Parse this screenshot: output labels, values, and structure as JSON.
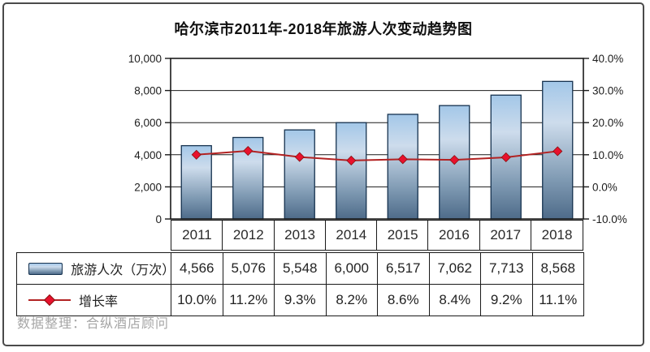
{
  "title": "哈尔滨市2011年-2018年旅游人次变动趋势图",
  "watermark": "数据整理：合纵酒店顾问",
  "chart_data": {
    "type": "combo",
    "categories": [
      "2011",
      "2012",
      "2013",
      "2014",
      "2015",
      "2016",
      "2017",
      "2018"
    ],
    "series": [
      {
        "name": "旅游人次（万次）",
        "type": "bar",
        "axis": "left",
        "values": [
          4566,
          5076,
          5548,
          6000,
          6517,
          7062,
          7713,
          8568
        ]
      },
      {
        "name": "增长率",
        "type": "line",
        "axis": "right",
        "values": [
          10.0,
          11.2,
          9.3,
          8.2,
          8.6,
          8.4,
          9.2,
          11.1
        ]
      }
    ],
    "left_axis": {
      "min": 0,
      "max": 10000,
      "step": 2000,
      "labels": [
        "10,000",
        "8,000",
        "6,000",
        "4,000",
        "2,000",
        "0"
      ]
    },
    "right_axis": {
      "min": -10,
      "max": 40,
      "step": 10,
      "labels": [
        "40.0%",
        "30.0%",
        "20.0%",
        "10.0%",
        "0.0%",
        "-10.0%"
      ]
    },
    "grid": true,
    "legend_position": "bottom-table",
    "colors": {
      "bar_top": "#a3c7e8",
      "bar_mid": "#cddcec",
      "bar_bottom": "#4e6b89",
      "bar_border": "#16324f",
      "line": "#b22222",
      "marker": "#e8112d",
      "marker_edge": "#8b1111",
      "grid_line": "#1a1a1a"
    }
  },
  "table": {
    "rows": [
      {
        "label": "旅游人次（万次）",
        "swatch": "bar",
        "cells": [
          "4,566",
          "5,076",
          "5,548",
          "6,000",
          "6,517",
          "7,062",
          "7,713",
          "8,568"
        ]
      },
      {
        "label": "增长率",
        "swatch": "line",
        "cells": [
          "10.0%",
          "11.2%",
          "9.3%",
          "8.2%",
          "8.6%",
          "8.4%",
          "9.2%",
          "11.1%"
        ]
      }
    ]
  }
}
